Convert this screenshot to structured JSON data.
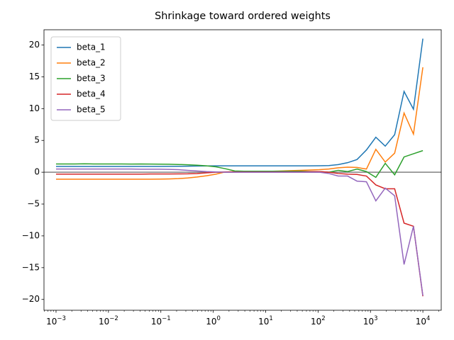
{
  "chart_data": {
    "type": "line",
    "title": "Shrinkage toward ordered weights",
    "x": [
      0.001,
      0.00151,
      0.00229,
      0.00346,
      0.00522,
      0.00789,
      0.0119,
      0.018,
      0.0273,
      0.0412,
      0.0624,
      0.0943,
      0.1425,
      0.2154,
      0.3257,
      0.4924,
      0.7443,
      1.125,
      1.701,
      2.572,
      3.888,
      5.878,
      8.886,
      13.43,
      20.31,
      30.7,
      46.42,
      70.17,
      106.1,
      160.4,
      242.4,
      366.5,
      554.1,
      837.7,
      1266,
      1914,
      2894,
      4375,
      6614,
      10000
    ],
    "series": [
      {
        "name": "beta_1",
        "color": "#1f77b4",
        "values": [
          0.9,
          0.9,
          0.9,
          0.9,
          0.9,
          0.9,
          0.9,
          0.9,
          0.9,
          0.9,
          0.9,
          0.9,
          0.92,
          0.93,
          0.95,
          0.97,
          0.99,
          1.0,
          1.0,
          1.0,
          1.0,
          1.0,
          1.0,
          1.0,
          1.0,
          1.0,
          1.0,
          1.0,
          1.02,
          1.05,
          1.2,
          1.5,
          2.0,
          3.5,
          5.5,
          4.1,
          5.9,
          12.7,
          9.9,
          21
        ]
      },
      {
        "name": "beta_2",
        "color": "#ff7f0e",
        "values": [
          -1.1,
          -1.1,
          -1.1,
          -1.1,
          -1.1,
          -1.1,
          -1.1,
          -1.1,
          -1.1,
          -1.1,
          -1.1,
          -1.08,
          -1.05,
          -1.0,
          -0.9,
          -0.75,
          -0.55,
          -0.3,
          0.05,
          0.1,
          0.1,
          0.1,
          0.1,
          0.15,
          0.2,
          0.25,
          0.3,
          0.35,
          0.4,
          0.5,
          0.7,
          0.8,
          0.75,
          0.5,
          3.6,
          1.6,
          3.0,
          9.3,
          6.0,
          16.5
        ]
      },
      {
        "name": "beta_3",
        "color": "#2ca02c",
        "values": [
          1.3,
          1.3,
          1.3,
          1.32,
          1.3,
          1.3,
          1.3,
          1.3,
          1.28,
          1.3,
          1.28,
          1.27,
          1.25,
          1.22,
          1.17,
          1.1,
          1.0,
          0.85,
          0.55,
          0.2,
          0.15,
          0.15,
          0.15,
          0.15,
          0.15,
          0.15,
          0.15,
          0.12,
          0.1,
          0.0,
          0.3,
          0.1,
          0.5,
          0.1,
          -0.8,
          1.4,
          -0.4,
          2.4,
          2.9,
          3.4
        ]
      },
      {
        "name": "beta_4",
        "color": "#d62728",
        "values": [
          -0.3,
          -0.3,
          -0.3,
          -0.3,
          -0.3,
          -0.3,
          -0.3,
          -0.3,
          -0.3,
          -0.3,
          -0.28,
          -0.28,
          -0.27,
          -0.26,
          -0.25,
          -0.2,
          -0.1,
          0.0,
          0.05,
          0.05,
          0.05,
          0.05,
          0.05,
          0.05,
          0.05,
          0.05,
          0.05,
          0.08,
          0.1,
          0.0,
          -0.2,
          -0.3,
          -0.35,
          -0.6,
          -2.0,
          -2.6,
          -2.6,
          -8.0,
          -8.5,
          -19.5
        ]
      },
      {
        "name": "beta_5",
        "color": "#9467bd",
        "values": [
          0.5,
          0.5,
          0.5,
          0.5,
          0.5,
          0.5,
          0.5,
          0.5,
          0.5,
          0.48,
          0.48,
          0.47,
          0.45,
          0.4,
          0.3,
          0.2,
          0.1,
          0.05,
          0.0,
          0.0,
          0.0,
          0.0,
          0.0,
          0.0,
          0.0,
          0.0,
          0.0,
          0.0,
          0.0,
          -0.2,
          -0.6,
          -0.6,
          -1.4,
          -1.5,
          -4.5,
          -2.5,
          -3.7,
          -14.5,
          -8.5,
          -19.4
        ]
      }
    ],
    "xscale": "log",
    "xlim": [
      0.000589,
      22400
    ],
    "xticks": [
      {
        "value": 0.001,
        "label": "10",
        "exponent": "−3"
      },
      {
        "value": 0.01,
        "label": "10",
        "exponent": "−2"
      },
      {
        "value": 0.1,
        "label": "10",
        "exponent": "−1"
      },
      {
        "value": 1,
        "label": "10",
        "exponent": "0"
      },
      {
        "value": 10,
        "label": "10",
        "exponent": "1"
      },
      {
        "value": 100,
        "label": "10",
        "exponent": "2"
      },
      {
        "value": 1000,
        "label": "10",
        "exponent": "3"
      },
      {
        "value": 10000,
        "label": "10",
        "exponent": "4"
      }
    ],
    "ylim": [
      -21.7,
      22.4
    ],
    "yticks": [
      {
        "value": -20,
        "label": "−20"
      },
      {
        "value": -15,
        "label": "−15"
      },
      {
        "value": -10,
        "label": "−10"
      },
      {
        "value": -5,
        "label": "−5"
      },
      0,
      5,
      10,
      15,
      20
    ],
    "hline": 0,
    "hline_color": "#808080",
    "legend": "upper left",
    "grid": false
  }
}
